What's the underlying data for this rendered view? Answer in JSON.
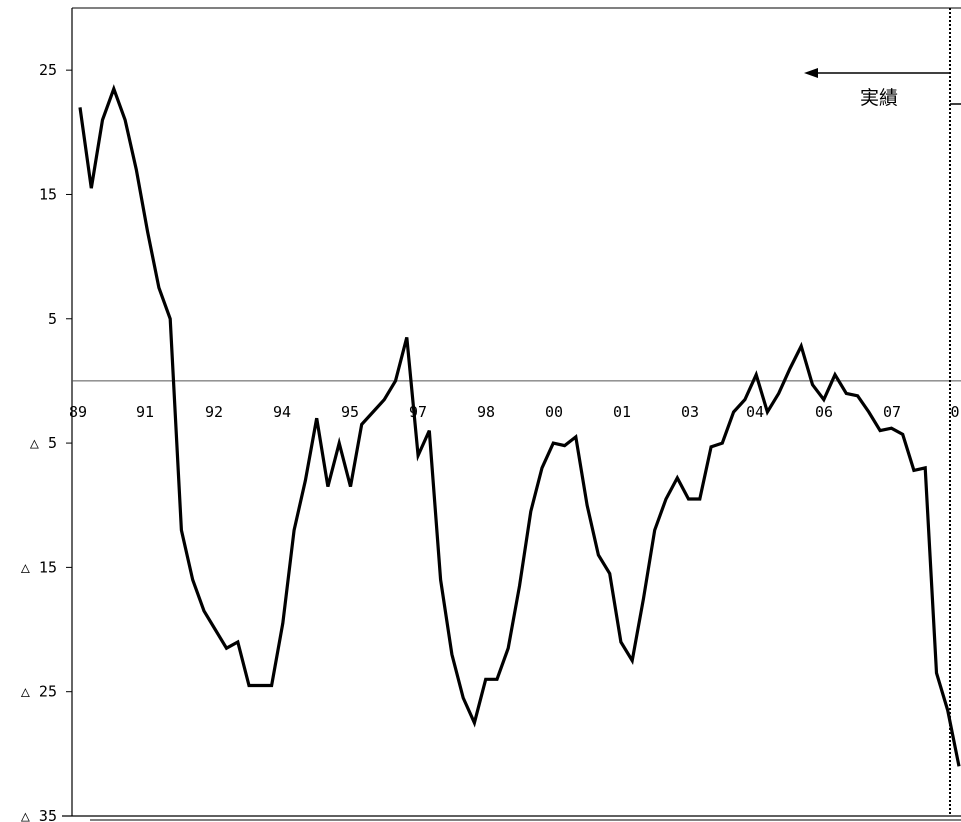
{
  "chart_data": {
    "type": "line",
    "title": "",
    "xlabel": "",
    "ylabel": "",
    "ylim": [
      -35,
      30
    ],
    "y_ticks": [
      {
        "value": 25,
        "label": "25"
      },
      {
        "value": 15,
        "label": "15"
      },
      {
        "value": 5,
        "label": "5"
      },
      {
        "value": -5,
        "label": "△ 5"
      },
      {
        "value": -15,
        "label": "△ 15"
      },
      {
        "value": -25,
        "label": "△ 25"
      },
      {
        "value": -35,
        "label": "△ 35"
      }
    ],
    "x_tick_labels": [
      "89",
      "91",
      "92",
      "94",
      "95",
      "97",
      "98",
      "00",
      "01",
      "03",
      "04",
      "06",
      "07",
      "0"
    ],
    "grid": false,
    "legend": "none",
    "annotation": {
      "text": "実績",
      "arrow": "left"
    },
    "series": [
      {
        "color": "#000000",
        "values": [
          22,
          15.5,
          21,
          23.5,
          21,
          17,
          12,
          7.5,
          5,
          -12,
          -16,
          -18.5,
          -20,
          -21.5,
          -21,
          -24.5,
          -24.5,
          -24.5,
          -19.5,
          -12,
          -8,
          -3,
          -8.5,
          -5,
          -8.5,
          -3.5,
          -2.5,
          -1.5,
          0,
          3.5,
          -6,
          -4,
          -16,
          -22,
          -25.5,
          -27.5,
          -24,
          -24,
          -21.5,
          -16.5,
          -10.5,
          -7,
          -5,
          -5.2,
          -4.5,
          -10,
          -14,
          -15.5,
          -21,
          -22.5,
          -17.5,
          -12,
          -9.5,
          -7.8,
          -9.5,
          -9.5,
          -5.3,
          -5,
          -2.5,
          -1.5,
          0.5,
          -2.5,
          -1,
          1,
          2.8,
          -0.3,
          -1.5,
          0.5,
          -1,
          -1.2,
          -2.5,
          -4,
          -3.8,
          -4.3,
          -7.2,
          -7,
          -23.5,
          -26.5,
          -31
        ]
      }
    ]
  }
}
